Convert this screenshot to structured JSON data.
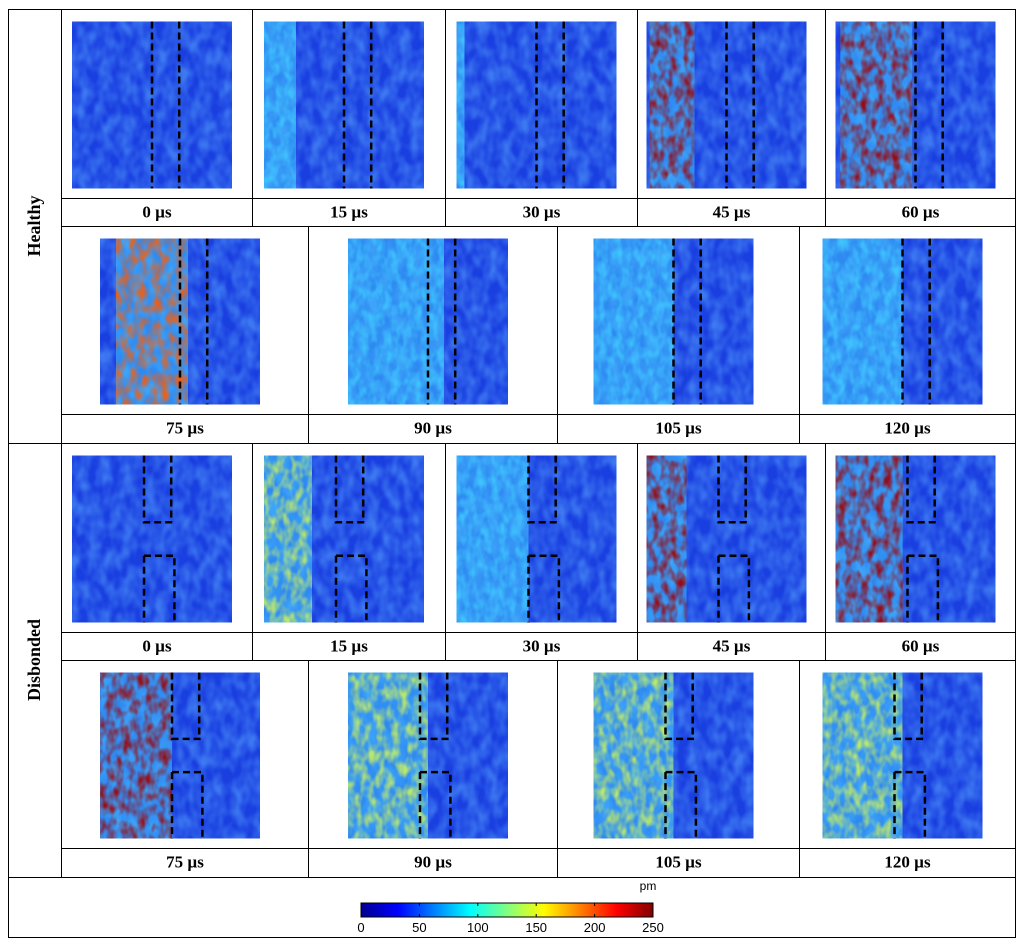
{
  "groups": [
    {
      "label": "Healthy",
      "defect": false,
      "frames": [
        {
          "time": "0 µs",
          "front": 0.0,
          "width": 0.0,
          "intensity": 0.1
        },
        {
          "time": "15 µs",
          "front": 0.2,
          "width": 0.8,
          "intensity": 0.35
        },
        {
          "time": "30 µs",
          "front": 0.05,
          "width": 0.3,
          "intensity": 0.3
        },
        {
          "time": "45 µs",
          "front": 0.3,
          "width": 0.28,
          "intensity": 1.0
        },
        {
          "time": "60 µs",
          "front": 0.48,
          "width": 0.45,
          "intensity": 0.95
        },
        {
          "time": "75 µs",
          "front": 0.55,
          "width": 0.45,
          "intensity": 0.7
        },
        {
          "time": "90 µs",
          "front": 0.6,
          "width": 0.6,
          "intensity": 0.35
        },
        {
          "time": "105 µs",
          "front": 0.5,
          "width": 0.6,
          "intensity": 0.2
        },
        {
          "time": "120 µs",
          "front": 0.5,
          "width": 0.6,
          "intensity": 0.12
        }
      ]
    },
    {
      "label": "Disbonded",
      "defect": true,
      "frames": [
        {
          "time": "0 µs",
          "front": 0.0,
          "width": 0.0,
          "intensity": 0.1
        },
        {
          "time": "15 µs",
          "front": 0.3,
          "width": 0.3,
          "intensity": 0.45
        },
        {
          "time": "30 µs",
          "front": 0.45,
          "width": 0.45,
          "intensity": 0.4
        },
        {
          "time": "45 µs",
          "front": 0.25,
          "width": 0.25,
          "intensity": 1.0
        },
        {
          "time": "60 µs",
          "front": 0.42,
          "width": 0.42,
          "intensity": 1.0
        },
        {
          "time": "75 µs",
          "front": 0.45,
          "width": 0.45,
          "intensity": 1.0
        },
        {
          "time": "90 µs",
          "front": 0.5,
          "width": 1.0,
          "intensity": 0.6
        },
        {
          "time": "105 µs",
          "front": 0.5,
          "width": 1.0,
          "intensity": 0.6
        },
        {
          "time": "120 µs",
          "front": 0.5,
          "width": 1.0,
          "intensity": 0.6
        }
      ]
    }
  ],
  "colorbar": {
    "unit": "pm",
    "ticks": [
      "0",
      "50",
      "100",
      "150",
      "200",
      "250"
    ],
    "colors": [
      "#00008f",
      "#0000ff",
      "#0080ff",
      "#00ffff",
      "#80ff80",
      "#ffff00",
      "#ff8000",
      "#ff0000",
      "#800000"
    ]
  }
}
